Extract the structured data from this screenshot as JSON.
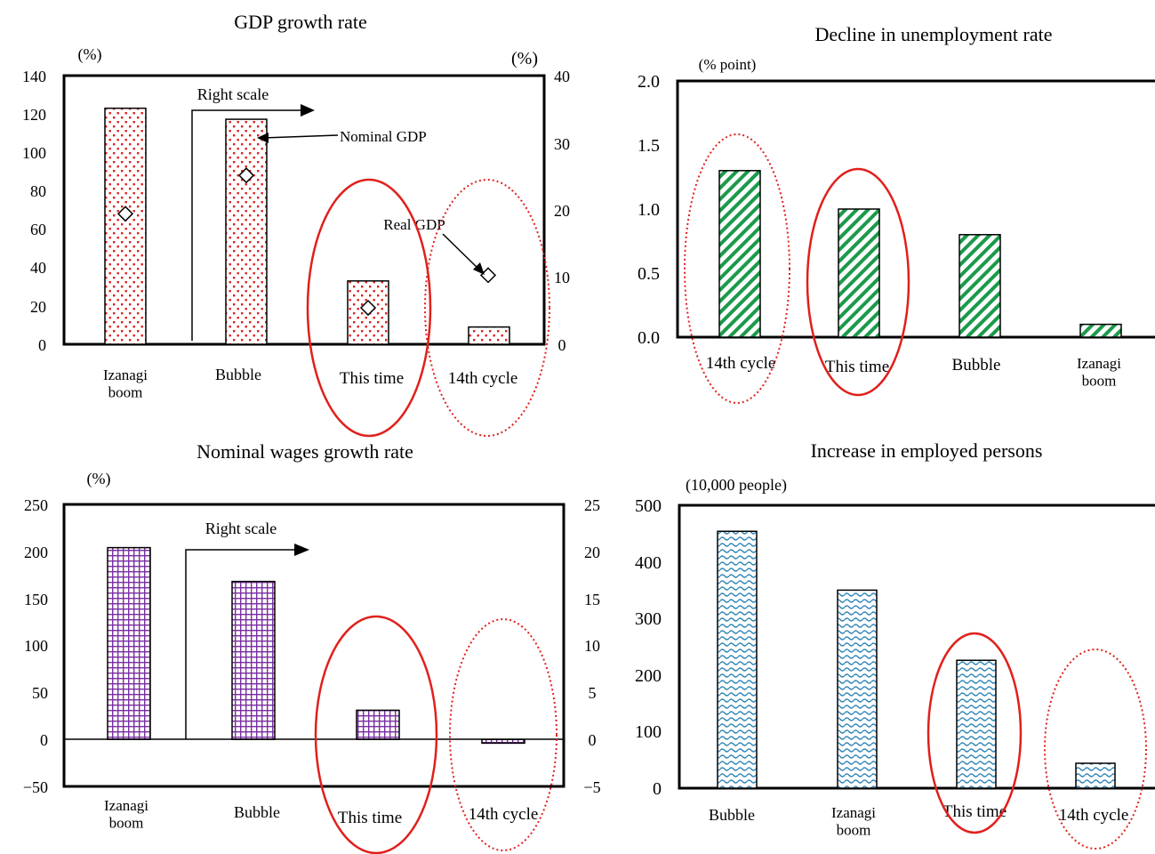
{
  "colors": {
    "gdp_bar": "#e0201c",
    "wage_bar": "#7a2fa0",
    "unemp_bar": "#1a9a4a",
    "emp_bar": "#2f86b8",
    "highlight": "#e0201c"
  },
  "chart_data": [
    {
      "id": "gdp",
      "type": "bar",
      "title": "GDP growth rate",
      "ylabel": "(%)",
      "ylabel_right": "(%)",
      "ylim": [
        0,
        140
      ],
      "ylim_right": [
        0,
        40
      ],
      "yticks": [
        "0",
        "20",
        "40",
        "60",
        "80",
        "100",
        "120",
        "140"
      ],
      "yticks_right": [
        "0",
        "10",
        "20",
        "30",
        "40"
      ],
      "categories": [
        "Izanagi boom",
        "Bubble",
        "This time",
        "14th cycle"
      ],
      "series": [
        {
          "name": "Nominal GDP",
          "axis": "left",
          "values": [
            123,
            null,
            33,
            9
          ]
        },
        {
          "name": "Nominal GDP",
          "axis": "right",
          "values": [
            null,
            33.5,
            null,
            null
          ]
        },
        {
          "name": "Real GDP",
          "axis": "left",
          "values": [
            68,
            88,
            19,
            36
          ]
        }
      ],
      "annotations": [
        "Right scale",
        "Nominal GDP",
        "Real GDP"
      ],
      "highlight": [
        {
          "category": "This time",
          "style": "solid"
        },
        {
          "category": "14th cycle",
          "style": "dotted"
        }
      ],
      "grid": false
    },
    {
      "id": "unemployment",
      "type": "bar",
      "title": "Decline in unemployment rate",
      "ylabel": "(% point)",
      "ylim": [
        0,
        2
      ],
      "yticks": [
        "0.0",
        "0.5",
        "1.0",
        "1.5",
        "2.0"
      ],
      "categories": [
        "14th cycle",
        "This time",
        "Bubble",
        "Izanagi boom"
      ],
      "values": [
        1.3,
        1.0,
        0.8,
        0.1
      ],
      "highlight": [
        {
          "category": "14th cycle",
          "style": "dotted"
        },
        {
          "category": "This time",
          "style": "solid"
        }
      ],
      "grid": false
    },
    {
      "id": "wages",
      "type": "bar",
      "title": "Nominal wages growth rate",
      "ylabel": "(%)",
      "ylim": [
        -50,
        250
      ],
      "ylim_right": [
        -5,
        25
      ],
      "yticks": [
        "−50",
        "0",
        "50",
        "100",
        "150",
        "200",
        "250"
      ],
      "yticks_right": [
        "−5",
        "0",
        "5",
        "10",
        "15",
        "20",
        "25"
      ],
      "categories": [
        "Izanagi boom",
        "Bubble",
        "This time",
        "14th cycle"
      ],
      "series": [
        {
          "axis": "left",
          "values": [
            204,
            null,
            31,
            -4
          ]
        },
        {
          "axis": "right",
          "values": [
            null,
            16.8,
            null,
            null
          ]
        }
      ],
      "annotations": [
        "Right scale"
      ],
      "highlight": [
        {
          "category": "This time",
          "style": "solid"
        },
        {
          "category": "14th cycle",
          "style": "dotted"
        }
      ],
      "grid": false
    },
    {
      "id": "employed",
      "type": "bar",
      "title": "Increase in employed persons",
      "ylabel": "(10,000 people)",
      "ylim": [
        0,
        500
      ],
      "yticks": [
        "0",
        "100",
        "200",
        "300",
        "400",
        "500"
      ],
      "categories": [
        "Bubble",
        "Izanagi boom",
        "This time",
        "14th cycle"
      ],
      "values": [
        454,
        350,
        226,
        44
      ],
      "highlight": [
        {
          "category": "This time",
          "style": "solid"
        },
        {
          "category": "14th cycle",
          "style": "dotted"
        }
      ],
      "grid": false
    }
  ]
}
